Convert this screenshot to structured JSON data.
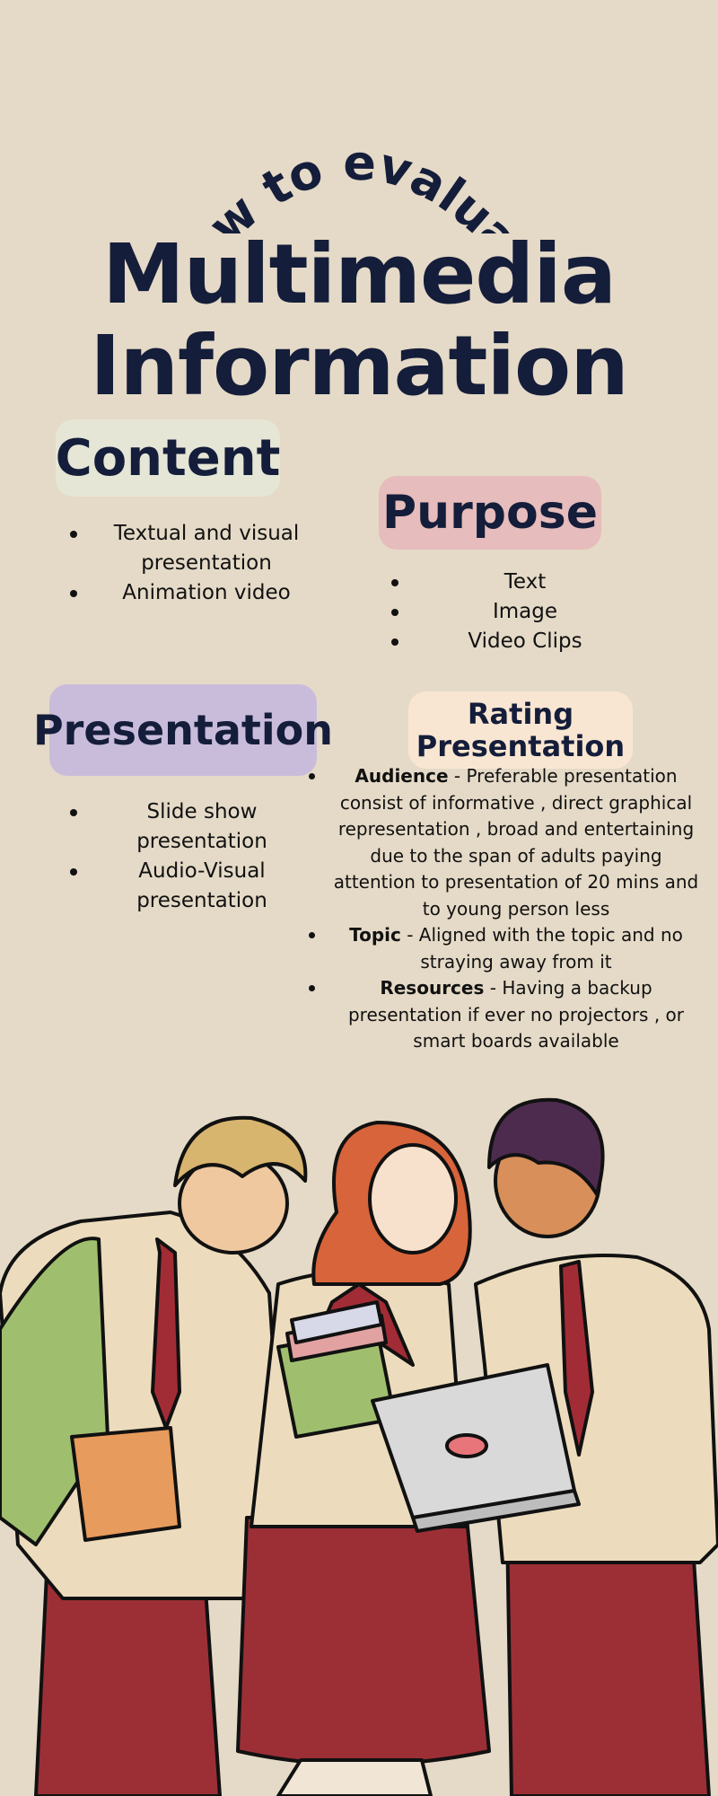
{
  "header": {
    "arc_title": "How to evaluate",
    "title_line1": "Multimedia",
    "title_line2": "Information"
  },
  "sections": {
    "content": {
      "heading": "Content",
      "items": [
        "Textual and visual presentation",
        "Animation video"
      ]
    },
    "purpose": {
      "heading": "Purpose",
      "items": [
        "Text",
        "Image",
        "Video Clips"
      ]
    },
    "presentation": {
      "heading": "Presentation",
      "items": [
        "Slide show presentation",
        "Audio-Visual presentation"
      ]
    },
    "rating": {
      "heading_line1": "Rating",
      "heading_line2": "Presentation",
      "items": [
        {
          "term": "Audience",
          "text": " - Preferable presentation consist of informative , direct graphical representation , broad and entertaining due to the span of adults paying attention to presentation of 20 mins and to young person less"
        },
        {
          "term": "Topic",
          "text": " - Aligned with the topic and no straying away from it"
        },
        {
          "term": "Resources",
          "text": " - Having a backup presentation if ever no projectors , or smart boards available"
        }
      ]
    }
  },
  "colors": {
    "background": "#e5dac7",
    "navy": "#141d3a",
    "content_pill": "#e6e6d6",
    "purpose_pill": "#e6bcbc",
    "presentation_pill": "#c9bcdb",
    "rating_pill": "#f9e6d2",
    "uniform_red": "#9c2f36",
    "shirt_beige": "#ecdcbd"
  },
  "illustration": {
    "subject": "three-students-in-uniform-looking-at-laptop"
  }
}
